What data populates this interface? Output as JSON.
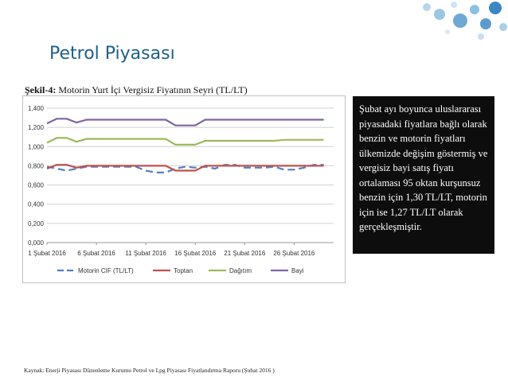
{
  "slide": {
    "title": "Petrol Piyasası",
    "chart_caption_bold": "Şekil-4:",
    "chart_caption_rest": " Motorin Yurt İçi Vergisiz Fiyatının Seyri (TL/LT)",
    "note": "Şubat ayı boyunca uluslararası piyasadaki fiyatlara bağlı olarak benzin ve motorin fiyatları ülkemizde değişim göstermiş ve vergisiz bayi satış fiyatı ortalaması 95 oktan kurşunsuz benzin için 1,30 TL/LT, motorin için ise 1,27 TL/LT olarak gerçekleşmiştir.",
    "source": "Kaynak: Enerji Piyasası Düzenleme Kurumu Petrol ve Lpg Piyasası Fiyatlandırma Raporu (Şubat 2016 )"
  },
  "chart_data": {
    "type": "line",
    "x": [
      1,
      2,
      3,
      4,
      5,
      6,
      7,
      8,
      9,
      10,
      11,
      12,
      13,
      14,
      15,
      16,
      17,
      18,
      19,
      20,
      21,
      22,
      23,
      24,
      25,
      26,
      27,
      28,
      29
    ],
    "tick_labels": [
      "1 Şubat 2016",
      "6 Şubat 2016",
      "11 Şubat 2016",
      "16 Şubat 2016",
      "21 Şubat 2016",
      "26 Şubat 2016"
    ],
    "tick_days": [
      1,
      6,
      11,
      16,
      21,
      26
    ],
    "yticks": [
      "0,000",
      "0,200",
      "0,400",
      "0,600",
      "0,800",
      "1,000",
      "1,200",
      "1,400"
    ],
    "ylim": [
      0,
      1.4
    ],
    "grid": true,
    "legend_position": "bottom",
    "series": [
      {
        "name": "Motorin CIF (TL/LT)",
        "color": "#4f81bd",
        "dash": true,
        "values": [
          0.79,
          0.77,
          0.75,
          0.77,
          0.79,
          0.79,
          0.79,
          0.79,
          0.79,
          0.79,
          0.75,
          0.73,
          0.73,
          0.77,
          0.79,
          0.78,
          0.79,
          0.77,
          0.81,
          0.81,
          0.78,
          0.78,
          0.78,
          0.79,
          0.76,
          0.76,
          0.78,
          0.81,
          0.81
        ]
      },
      {
        "name": "Toptan",
        "color": "#c0504d",
        "dash": false,
        "values": [
          0.77,
          0.81,
          0.81,
          0.78,
          0.8,
          0.8,
          0.8,
          0.8,
          0.8,
          0.8,
          0.8,
          0.8,
          0.8,
          0.75,
          0.75,
          0.75,
          0.8,
          0.8,
          0.8,
          0.8,
          0.8,
          0.8,
          0.8,
          0.8,
          0.8,
          0.8,
          0.8,
          0.8,
          0.8
        ]
      },
      {
        "name": "Dağıtım",
        "color": "#9bbb59",
        "dash": false,
        "values": [
          1.04,
          1.09,
          1.09,
          1.05,
          1.08,
          1.08,
          1.08,
          1.08,
          1.08,
          1.08,
          1.08,
          1.08,
          1.08,
          1.02,
          1.02,
          1.02,
          1.06,
          1.06,
          1.06,
          1.06,
          1.06,
          1.06,
          1.06,
          1.06,
          1.07,
          1.07,
          1.07,
          1.07,
          1.07
        ]
      },
      {
        "name": "Bayi",
        "color": "#8064a2",
        "dash": false,
        "values": [
          1.24,
          1.29,
          1.29,
          1.25,
          1.28,
          1.28,
          1.28,
          1.28,
          1.28,
          1.28,
          1.28,
          1.28,
          1.28,
          1.22,
          1.22,
          1.22,
          1.28,
          1.28,
          1.28,
          1.28,
          1.28,
          1.28,
          1.28,
          1.28,
          1.28,
          1.28,
          1.28,
          1.28,
          1.28
        ]
      }
    ]
  }
}
